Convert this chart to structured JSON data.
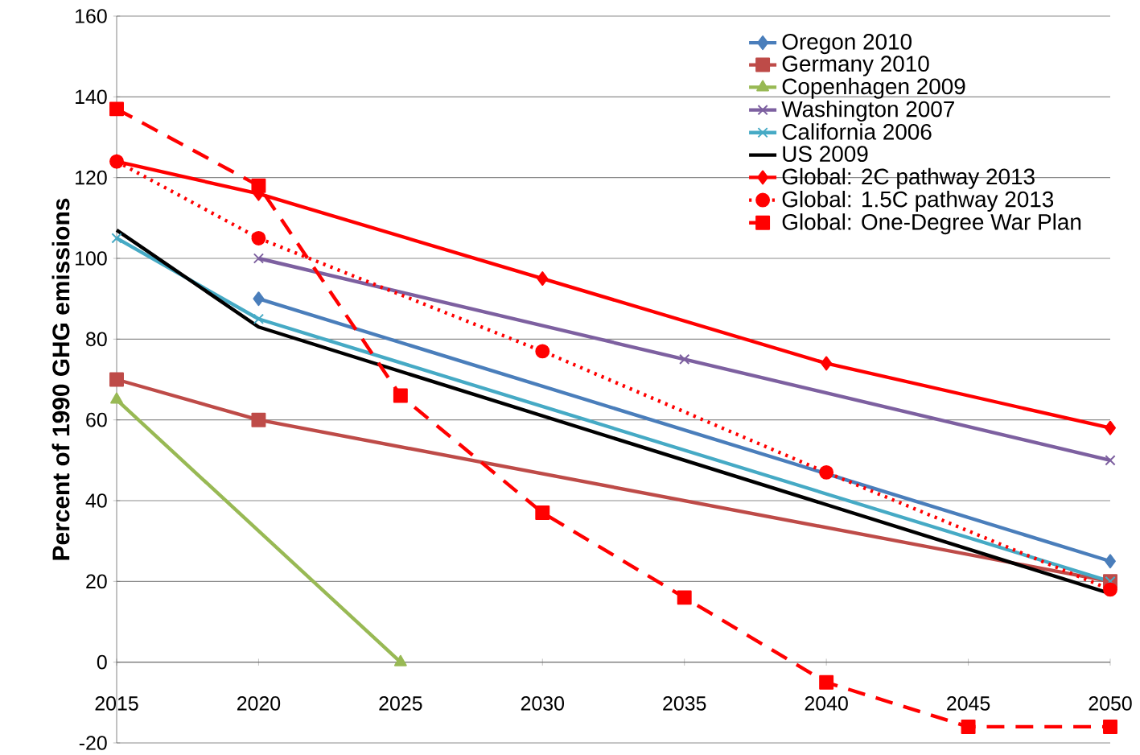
{
  "chart_data": {
    "type": "line",
    "ylabel": "Percent of 1990 GHG emissions",
    "xlim": [
      2015,
      2050
    ],
    "ylim": [
      -20,
      160
    ],
    "xticks": [
      2015,
      2020,
      2025,
      2030,
      2035,
      2040,
      2045,
      2050
    ],
    "yticks": [
      -20,
      0,
      20,
      40,
      60,
      80,
      100,
      120,
      140,
      160
    ],
    "grid": "y",
    "legend": "top right",
    "series": [
      {
        "name": "Oregon 2010",
        "color": "#4a7ebb",
        "marker": "diamond",
        "line_style": "solid",
        "x": [
          2020,
          2050
        ],
        "values": [
          90,
          25
        ]
      },
      {
        "name": "Germany 2010",
        "color": "#be4b48",
        "marker": "square",
        "line_style": "solid",
        "x": [
          2015,
          2020,
          2050
        ],
        "values": [
          70,
          60,
          20
        ]
      },
      {
        "name": "Copenhagen 2009",
        "color": "#98b954",
        "marker": "triangle",
        "line_style": "solid",
        "x": [
          2015,
          2025
        ],
        "values": [
          65,
          0
        ]
      },
      {
        "name": "Washington 2007",
        "color": "#7d60a0",
        "marker": "cross",
        "line_style": "solid",
        "x": [
          2020,
          2035,
          2050
        ],
        "values": [
          100,
          75,
          50
        ]
      },
      {
        "name": "California 2006",
        "color": "#46aac5",
        "marker": "cross",
        "line_style": "solid",
        "x": [
          2015,
          2020,
          2050
        ],
        "values": [
          105,
          85,
          20
        ]
      },
      {
        "name": "US 2009",
        "color": "#000000",
        "marker": "none",
        "line_style": "solid",
        "x": [
          2015,
          2020,
          2050
        ],
        "values": [
          107,
          83,
          17
        ]
      },
      {
        "name": "Global: 2C pathway 2013",
        "color": "#ff0000",
        "marker": "diamond",
        "line_style": "solid",
        "x": [
          2015,
          2020,
          2030,
          2040,
          2050
        ],
        "values": [
          124,
          116,
          95,
          74,
          58
        ]
      },
      {
        "name": "Global: 1.5C pathway 2013",
        "color": "#ff0000",
        "marker": "circle",
        "line_style": "dotted",
        "x": [
          2015,
          2020,
          2030,
          2040,
          2050
        ],
        "values": [
          124,
          105,
          77,
          47,
          18
        ]
      },
      {
        "name": "Global: One-Degree War Plan",
        "color": "#ff0000",
        "marker": "square",
        "line_style": "dashed",
        "x": [
          2015,
          2020,
          2025,
          2030,
          2035,
          2040,
          2045,
          2050
        ],
        "values": [
          137,
          118,
          66,
          37,
          16,
          -5,
          -16,
          -16
        ]
      }
    ]
  }
}
